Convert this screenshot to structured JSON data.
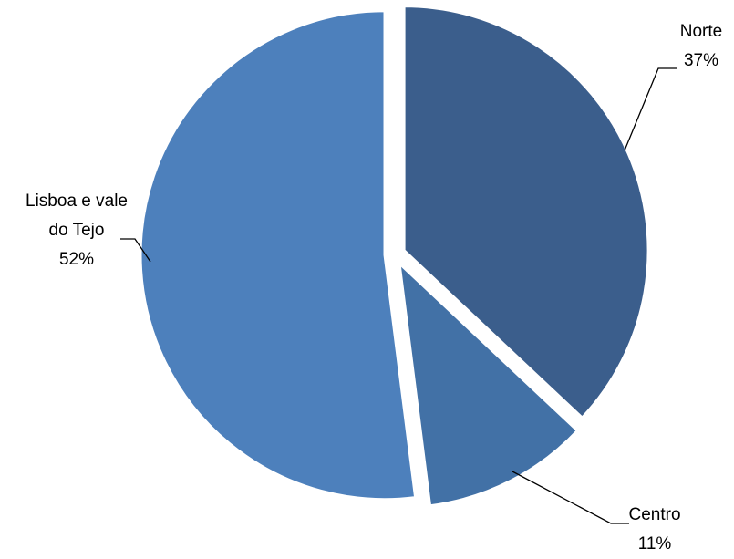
{
  "chart_data": {
    "type": "pie",
    "title": "",
    "legend": "none",
    "slices": [
      {
        "label": "Norte",
        "value": 37,
        "value_label": "37%",
        "color": "#3b5e8c"
      },
      {
        "label": "Centro",
        "value": 11,
        "value_label": "11%",
        "color": "#4271a6"
      },
      {
        "label": "Lisboa e vale do Tejo",
        "label_lines": [
          "Lisboa e vale",
          "do Tejo"
        ],
        "value": 52,
        "value_label": "52%",
        "color": "#4d80bc"
      }
    ],
    "exploded": true
  }
}
